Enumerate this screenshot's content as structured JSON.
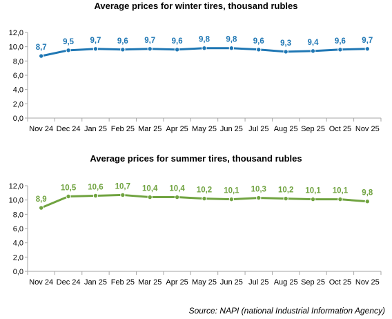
{
  "chart_data": [
    {
      "type": "line",
      "title": "Average prices for winter tires, thousand rubles",
      "categories": [
        "Nov 24",
        "Dec 24",
        "Jan 25",
        "Feb 25",
        "Mar 25",
        "Apr 25",
        "May 25",
        "Jun 25",
        "Jul 25",
        "Aug 25",
        "Sep 25",
        "Oct 25",
        "Nov 25"
      ],
      "series": [
        {
          "values": [
            8.7,
            9.5,
            9.7,
            9.6,
            9.7,
            9.6,
            9.8,
            9.8,
            9.6,
            9.3,
            9.4,
            9.6,
            9.7
          ],
          "labels": [
            "8,7",
            "9,5",
            "9,7",
            "9,6",
            "9,7",
            "9,6",
            "9,8",
            "9,8",
            "9,6",
            "9,3",
            "9,4",
            "9,6",
            "9,7"
          ],
          "color": "#1f77b4"
        }
      ],
      "ylim": [
        0,
        12
      ],
      "yticks": [
        "0,0",
        "2,0",
        "4,0",
        "6,0",
        "8,0",
        "10,0",
        "12,0"
      ],
      "grid": false,
      "legend": "none"
    },
    {
      "type": "line",
      "title": "Average prices for summer tires, thousand rubles",
      "categories": [
        "Nov 24",
        "Dec 24",
        "Jan 25",
        "Feb 25",
        "Mar 25",
        "Apr 25",
        "May 25",
        "Jun 25",
        "Jul 25",
        "Aug 25",
        "Sep 25",
        "Oct 25",
        "Nov 25"
      ],
      "series": [
        {
          "values": [
            8.9,
            10.5,
            10.6,
            10.7,
            10.4,
            10.4,
            10.2,
            10.1,
            10.3,
            10.2,
            10.1,
            10.1,
            9.8
          ],
          "labels": [
            "8,9",
            "10,5",
            "10,6",
            "10,7",
            "10,4",
            "10,4",
            "10,2",
            "10,1",
            "10,3",
            "10,2",
            "10,1",
            "10,1",
            "9,8"
          ],
          "color": "#70a340"
        }
      ],
      "ylim": [
        0,
        12
      ],
      "yticks": [
        "0,0",
        "2,0",
        "4,0",
        "6,0",
        "8,0",
        "10,0",
        "12,0"
      ],
      "grid": false,
      "legend": "none"
    }
  ],
  "source": "Source: NAPI (national Industrial Information Agency)"
}
